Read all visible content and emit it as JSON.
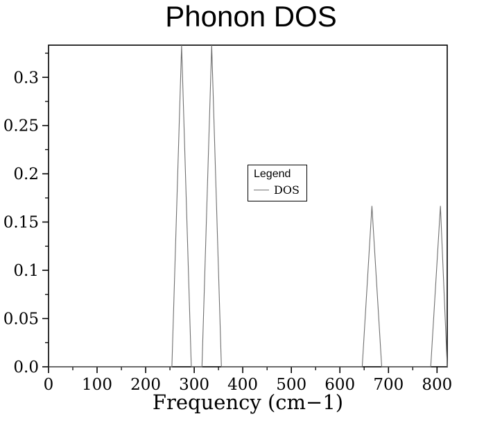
{
  "chart_data": {
    "type": "line",
    "title": "Phonon DOS",
    "xlabel": "Frequency (cm−1)",
    "ylabel": "",
    "xlim": [
      0,
      821
    ],
    "ylim": [
      0,
      0.3333
    ],
    "grid": false,
    "x_ticks": [
      0,
      100,
      200,
      300,
      400,
      500,
      600,
      700,
      800
    ],
    "x_tick_labels": [
      "0",
      "100",
      "200",
      "300",
      "400",
      "500",
      "600",
      "700",
      "800"
    ],
    "x_minor_ticks": [
      50,
      150,
      250,
      350,
      450,
      550,
      650,
      750
    ],
    "y_ticks": [
      0.0,
      0.05,
      0.1,
      0.15,
      0.2,
      0.25,
      0.3
    ],
    "y_tick_labels": [
      "0.0",
      "0.05",
      "0.1",
      "0.15",
      "0.2",
      "0.25",
      "0.3"
    ],
    "y_minor_ticks": [
      0.025,
      0.075,
      0.125,
      0.175,
      0.225,
      0.275,
      0.325
    ],
    "frame_color": "#000000",
    "line_color": "#6e6e6e",
    "legend": {
      "title": "Legend",
      "position": "center",
      "entries": [
        {
          "label": "DOS",
          "color": "#6e6e6e"
        }
      ]
    },
    "series": [
      {
        "name": "DOS",
        "points": [
          [
            0,
            0
          ],
          [
            254,
            0
          ],
          [
            274,
            0.3333
          ],
          [
            294,
            0
          ],
          [
            316,
            0
          ],
          [
            336,
            0.3333
          ],
          [
            356,
            0
          ],
          [
            646,
            0
          ],
          [
            666,
            0.1667
          ],
          [
            686,
            0
          ],
          [
            787,
            0
          ],
          [
            807,
            0.1667
          ],
          [
            821,
            0
          ]
        ]
      }
    ]
  }
}
